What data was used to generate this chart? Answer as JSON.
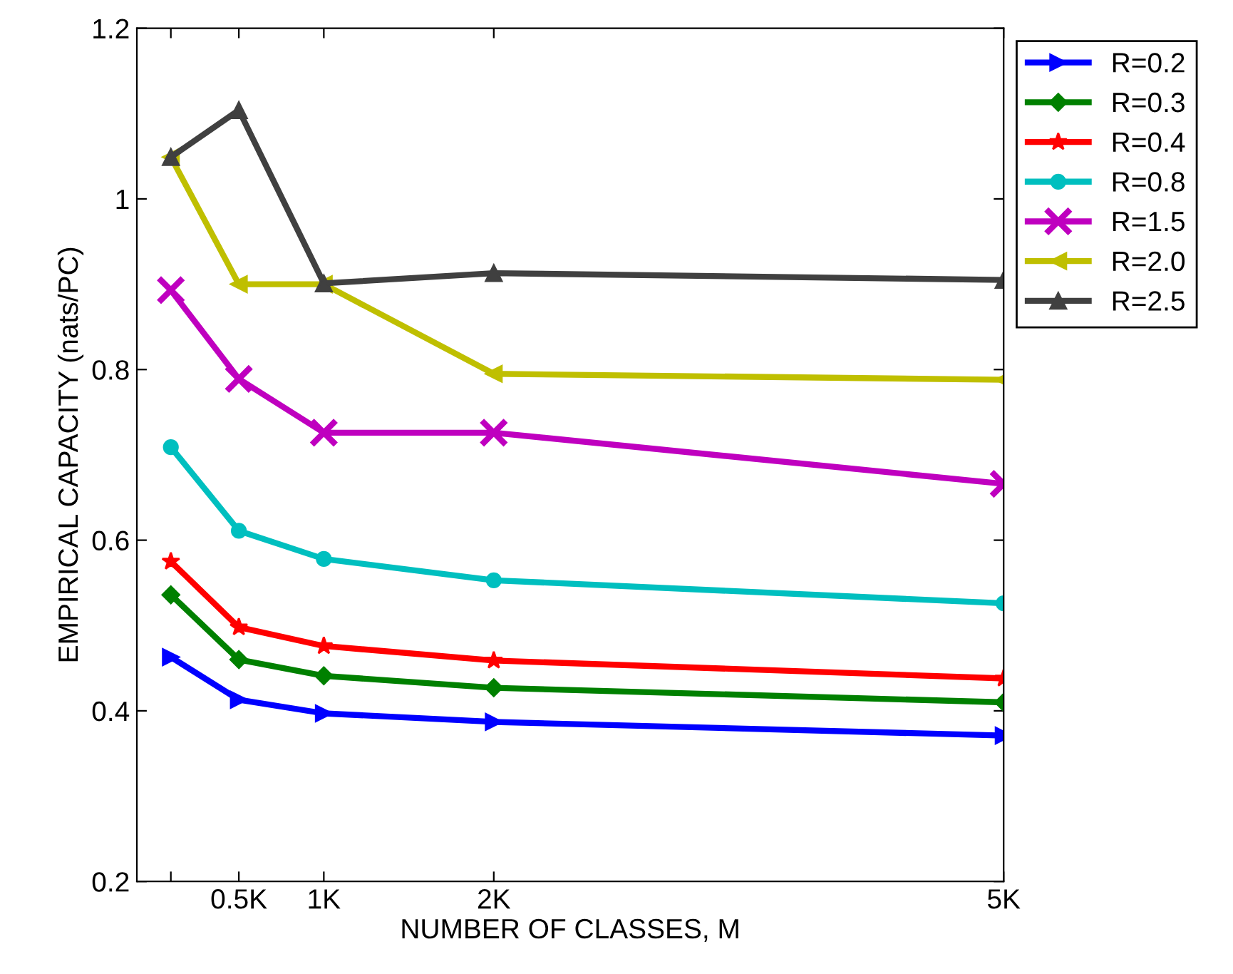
{
  "chart_data": {
    "type": "line",
    "xlabel": "NUMBER OF CLASSES, M",
    "ylabel": "EMPIRICAL CAPACITY (nats/PC)",
    "x": [
      100,
      500,
      1000,
      2000,
      5000
    ],
    "xlim": [
      -100,
      5000
    ],
    "xticks": [
      {
        "value": 100,
        "label": null
      },
      {
        "value": 500,
        "label": "0.5K"
      },
      {
        "value": 1000,
        "label": "1K"
      },
      {
        "value": 2000,
        "label": "2K"
      },
      {
        "value": 5000,
        "label": "5K"
      }
    ],
    "ylim": [
      0.2,
      1.2
    ],
    "yticks": [
      0.2,
      0.4,
      0.6,
      0.8,
      1,
      1.2
    ],
    "grid": false,
    "legend": "top right",
    "line_style": "solid",
    "series": [
      {
        "name": "R=0.2",
        "color": "#0000ff",
        "marker": "triangle_right",
        "values": [
          0.463,
          0.413,
          0.397,
          0.387,
          0.371
        ]
      },
      {
        "name": "R=0.3",
        "color": "#008000",
        "marker": "diamond",
        "values": [
          0.536,
          0.46,
          0.441,
          0.427,
          0.41
        ]
      },
      {
        "name": "R=0.4",
        "color": "#ff0000",
        "marker": "star",
        "values": [
          0.575,
          0.498,
          0.476,
          0.459,
          0.438
        ]
      },
      {
        "name": "R=0.8",
        "color": "#00bfbf",
        "marker": "circle",
        "values": [
          0.709,
          0.611,
          0.578,
          0.553,
          0.526
        ]
      },
      {
        "name": "R=1.5",
        "color": "#bf00bf",
        "marker": "cross",
        "values": [
          0.893,
          0.789,
          0.726,
          0.726,
          0.666
        ]
      },
      {
        "name": "R=2.0",
        "color": "#bfbf00",
        "marker": "triangle_left",
        "values": [
          1.049,
          0.9,
          0.9,
          0.795,
          0.788
        ]
      },
      {
        "name": "R=2.5",
        "color": "#404040",
        "marker": "triangle",
        "values": [
          1.049,
          1.104,
          0.901,
          0.913,
          0.905
        ]
      }
    ]
  }
}
